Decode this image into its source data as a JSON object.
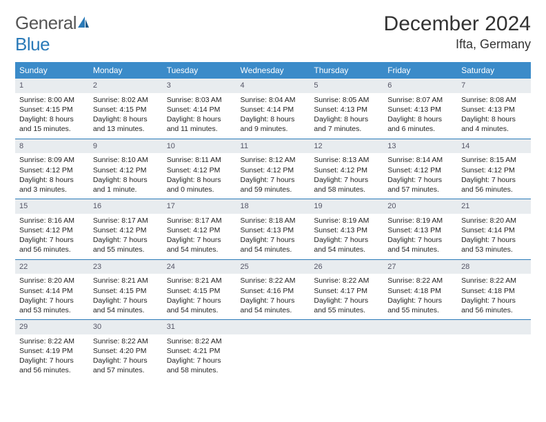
{
  "brand": {
    "part1": "General",
    "part2": "Blue"
  },
  "title": "December 2024",
  "location": "Ifta, Germany",
  "colors": {
    "header_bg": "#3b8bc9",
    "header_text": "#ffffff",
    "daynum_bg": "#e8ecef",
    "border": "#2a7ab8",
    "brand_blue": "#2a7ab8",
    "text": "#333333"
  },
  "dayHeaders": [
    "Sunday",
    "Monday",
    "Tuesday",
    "Wednesday",
    "Thursday",
    "Friday",
    "Saturday"
  ],
  "weeks": [
    [
      {
        "n": "1",
        "sr": "8:00 AM",
        "ss": "4:15 PM",
        "dl": "8 hours and 15 minutes."
      },
      {
        "n": "2",
        "sr": "8:02 AM",
        "ss": "4:15 PM",
        "dl": "8 hours and 13 minutes."
      },
      {
        "n": "3",
        "sr": "8:03 AM",
        "ss": "4:14 PM",
        "dl": "8 hours and 11 minutes."
      },
      {
        "n": "4",
        "sr": "8:04 AM",
        "ss": "4:14 PM",
        "dl": "8 hours and 9 minutes."
      },
      {
        "n": "5",
        "sr": "8:05 AM",
        "ss": "4:13 PM",
        "dl": "8 hours and 7 minutes."
      },
      {
        "n": "6",
        "sr": "8:07 AM",
        "ss": "4:13 PM",
        "dl": "8 hours and 6 minutes."
      },
      {
        "n": "7",
        "sr": "8:08 AM",
        "ss": "4:13 PM",
        "dl": "8 hours and 4 minutes."
      }
    ],
    [
      {
        "n": "8",
        "sr": "8:09 AM",
        "ss": "4:12 PM",
        "dl": "8 hours and 3 minutes."
      },
      {
        "n": "9",
        "sr": "8:10 AM",
        "ss": "4:12 PM",
        "dl": "8 hours and 1 minute."
      },
      {
        "n": "10",
        "sr": "8:11 AM",
        "ss": "4:12 PM",
        "dl": "8 hours and 0 minutes."
      },
      {
        "n": "11",
        "sr": "8:12 AM",
        "ss": "4:12 PM",
        "dl": "7 hours and 59 minutes."
      },
      {
        "n": "12",
        "sr": "8:13 AM",
        "ss": "4:12 PM",
        "dl": "7 hours and 58 minutes."
      },
      {
        "n": "13",
        "sr": "8:14 AM",
        "ss": "4:12 PM",
        "dl": "7 hours and 57 minutes."
      },
      {
        "n": "14",
        "sr": "8:15 AM",
        "ss": "4:12 PM",
        "dl": "7 hours and 56 minutes."
      }
    ],
    [
      {
        "n": "15",
        "sr": "8:16 AM",
        "ss": "4:12 PM",
        "dl": "7 hours and 56 minutes."
      },
      {
        "n": "16",
        "sr": "8:17 AM",
        "ss": "4:12 PM",
        "dl": "7 hours and 55 minutes."
      },
      {
        "n": "17",
        "sr": "8:17 AM",
        "ss": "4:12 PM",
        "dl": "7 hours and 54 minutes."
      },
      {
        "n": "18",
        "sr": "8:18 AM",
        "ss": "4:13 PM",
        "dl": "7 hours and 54 minutes."
      },
      {
        "n": "19",
        "sr": "8:19 AM",
        "ss": "4:13 PM",
        "dl": "7 hours and 54 minutes."
      },
      {
        "n": "20",
        "sr": "8:19 AM",
        "ss": "4:13 PM",
        "dl": "7 hours and 54 minutes."
      },
      {
        "n": "21",
        "sr": "8:20 AM",
        "ss": "4:14 PM",
        "dl": "7 hours and 53 minutes."
      }
    ],
    [
      {
        "n": "22",
        "sr": "8:20 AM",
        "ss": "4:14 PM",
        "dl": "7 hours and 53 minutes."
      },
      {
        "n": "23",
        "sr": "8:21 AM",
        "ss": "4:15 PM",
        "dl": "7 hours and 54 minutes."
      },
      {
        "n": "24",
        "sr": "8:21 AM",
        "ss": "4:15 PM",
        "dl": "7 hours and 54 minutes."
      },
      {
        "n": "25",
        "sr": "8:22 AM",
        "ss": "4:16 PM",
        "dl": "7 hours and 54 minutes."
      },
      {
        "n": "26",
        "sr": "8:22 AM",
        "ss": "4:17 PM",
        "dl": "7 hours and 55 minutes."
      },
      {
        "n": "27",
        "sr": "8:22 AM",
        "ss": "4:18 PM",
        "dl": "7 hours and 55 minutes."
      },
      {
        "n": "28",
        "sr": "8:22 AM",
        "ss": "4:18 PM",
        "dl": "7 hours and 56 minutes."
      }
    ],
    [
      {
        "n": "29",
        "sr": "8:22 AM",
        "ss": "4:19 PM",
        "dl": "7 hours and 56 minutes."
      },
      {
        "n": "30",
        "sr": "8:22 AM",
        "ss": "4:20 PM",
        "dl": "7 hours and 57 minutes."
      },
      {
        "n": "31",
        "sr": "8:22 AM",
        "ss": "4:21 PM",
        "dl": "7 hours and 58 minutes."
      },
      {
        "n": "",
        "empty": true
      },
      {
        "n": "",
        "empty": true
      },
      {
        "n": "",
        "empty": true
      },
      {
        "n": "",
        "empty": true
      }
    ]
  ],
  "labels": {
    "sunrise": "Sunrise: ",
    "sunset": "Sunset: ",
    "daylight": "Daylight: "
  }
}
